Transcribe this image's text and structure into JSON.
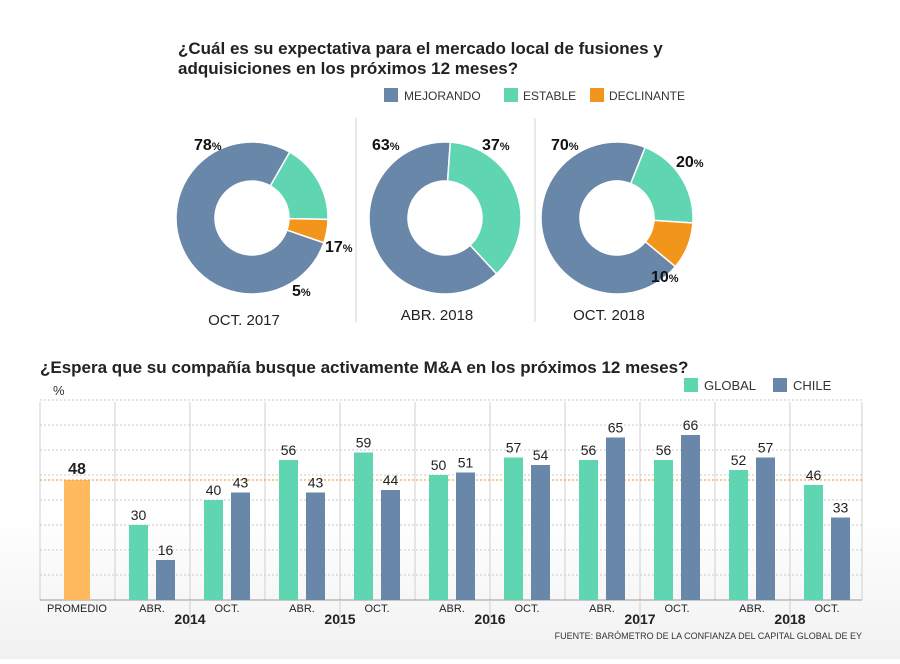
{
  "colors": {
    "mejorando": "#6887a9",
    "estable": "#5fd6b1",
    "declinante": "#f2951b",
    "global": "#5fd6b1",
    "chile": "#6887a9",
    "promedio": "#ffb95e",
    "avg_line": "#f2951b"
  },
  "chart_data": [
    {
      "type": "pie",
      "title": "¿Cuál es su expectativa para el mercado local de fusiones y adquisiciones en los próximos 12 meses?",
      "legend": [
        "MEJORANDO",
        "ESTABLE",
        "DECLINANTE"
      ],
      "legend_placement": "top-right",
      "donuts": [
        {
          "label": "OCT. 2017",
          "values": [
            78,
            17,
            5
          ]
        },
        {
          "label": "ABR. 2018",
          "values": [
            63,
            37,
            0
          ]
        },
        {
          "label": "OCT. 2018",
          "values": [
            70,
            20,
            10
          ]
        }
      ]
    },
    {
      "type": "bar",
      "title": "¿Espera que su compañía busque activamente M&A en los próximos 12 meses?",
      "ylabel": "%",
      "ylim": [
        0,
        100
      ],
      "grid": true,
      "legend_placement": "top-right",
      "average": {
        "label": "PROMEDIO",
        "value": 48
      },
      "categories": [
        "ABR.",
        "OCT.",
        "ABR.",
        "OCT.",
        "ABR.",
        "OCT.",
        "ABR.",
        "OCT.",
        "ABR.",
        "OCT."
      ],
      "years": [
        "2014",
        "2015",
        "2016",
        "2017",
        "2018"
      ],
      "series": [
        {
          "name": "GLOBAL",
          "values": [
            30,
            40,
            56,
            59,
            50,
            57,
            56,
            56,
            52,
            46
          ]
        },
        {
          "name": "CHILE",
          "values": [
            16,
            43,
            43,
            44,
            51,
            54,
            65,
            66,
            57,
            33
          ]
        }
      ]
    }
  ],
  "source": "FUENTE: BARÓMETRO DE LA CONFIANZA DEL CAPITAL GLOBAL DE EY"
}
